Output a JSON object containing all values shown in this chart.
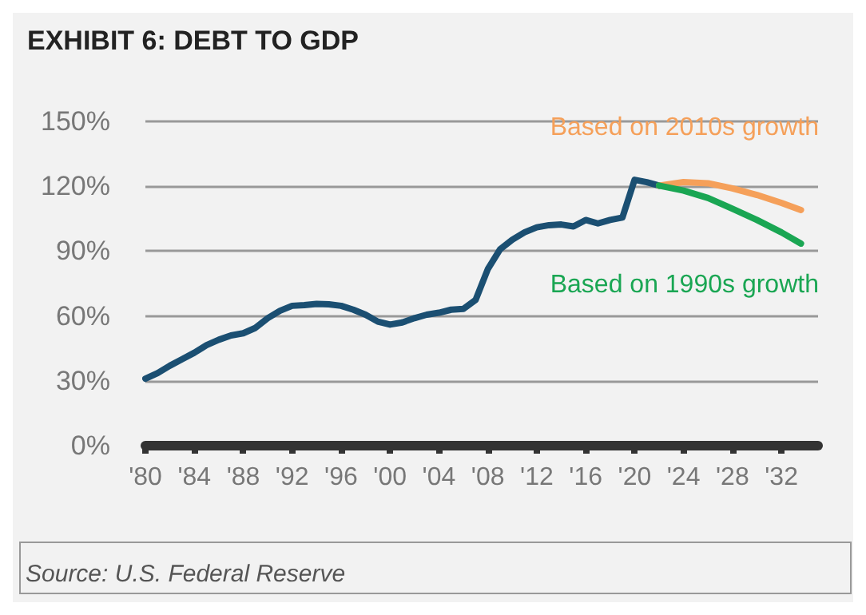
{
  "chart_data": {
    "type": "line",
    "title": "EXHIBIT 6: DEBT TO GDP",
    "annotations": [
      "Source: U.S. Federal Reserve"
    ],
    "series": [
      {
        "color": "#1b4f72",
        "x": [
          1980,
          1981,
          1982,
          1983,
          1984,
          1985,
          1986,
          1987,
          1988,
          1989,
          1990,
          1991,
          1992,
          1993,
          1994,
          1995,
          1996,
          1997,
          1998,
          1999,
          2000,
          2001,
          2002,
          2003,
          2004,
          2005,
          2006,
          2007,
          2008,
          2009,
          2010,
          2011,
          2012,
          2013,
          2014,
          2015,
          2016,
          2017,
          2018,
          2019,
          2020,
          2021,
          2022
        ],
        "values": [
          31,
          33.6,
          37,
          40,
          43,
          46.5,
          49,
          51,
          52,
          54.5,
          59,
          62.4,
          64.7,
          65,
          65.6,
          65.4,
          64.7,
          62.9,
          60.6,
          57.4,
          56,
          57,
          59,
          60.6,
          61.5,
          62.9,
          63.3,
          67.4,
          81.7,
          90.8,
          95.3,
          98.7,
          101,
          102,
          102.3,
          101.4,
          104.4,
          102.8,
          104.4,
          105.5,
          123,
          121.9,
          120.3
        ]
      },
      {
        "name": "Based on 2010s growth",
        "color": "#f5a05a",
        "x": [
          2022,
          2024,
          2026,
          2028,
          2030,
          2032,
          2033.6
        ],
        "values": [
          120.3,
          121.9,
          121.4,
          119,
          116,
          112.3,
          109
        ]
      },
      {
        "name": "Based on 1990s growth",
        "color": "#1aa653",
        "x": [
          2022,
          2024,
          2026,
          2028,
          2030,
          2032,
          2033.6
        ],
        "values": [
          120.3,
          118,
          114.6,
          109.6,
          104.4,
          98.7,
          93.5
        ]
      }
    ],
    "xlim": [
      1980,
      2035
    ],
    "xticks": [
      {
        "value": 1980,
        "label": "'80"
      },
      {
        "value": 1984,
        "label": "'84"
      },
      {
        "value": 1988,
        "label": "'88"
      },
      {
        "value": 1992,
        "label": "'92"
      },
      {
        "value": 1996,
        "label": "'96"
      },
      {
        "value": 2000,
        "label": "'00"
      },
      {
        "value": 2004,
        "label": "'04"
      },
      {
        "value": 2008,
        "label": "'08"
      },
      {
        "value": 2012,
        "label": "'12"
      },
      {
        "value": 2016,
        "label": "'16"
      },
      {
        "value": 2020,
        "label": "'20"
      },
      {
        "value": 2024,
        "label": "'24"
      },
      {
        "value": 2028,
        "label": "'28"
      },
      {
        "value": 2032,
        "label": "'32"
      }
    ],
    "ylim": [
      0,
      150
    ],
    "yticks": [
      {
        "value": 0,
        "label": "0%"
      },
      {
        "value": 30,
        "label": "30%"
      },
      {
        "value": 60,
        "label": "60%"
      },
      {
        "value": 90,
        "label": "90%"
      },
      {
        "value": 120,
        "label": "120%"
      },
      {
        "value": 150,
        "label": "150%"
      }
    ],
    "grid": "y",
    "legend": false,
    "marker": "none",
    "line_style": "solid"
  }
}
